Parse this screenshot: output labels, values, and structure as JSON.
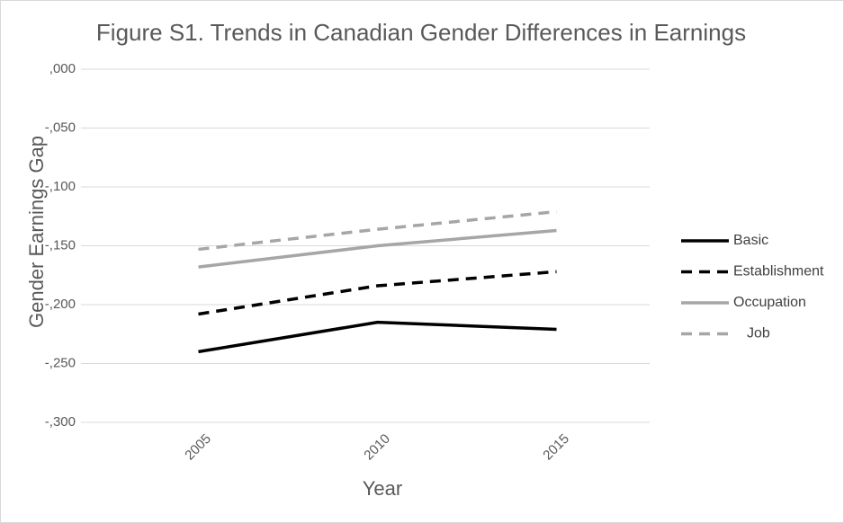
{
  "chart_data": {
    "type": "line",
    "title": "Figure S1. Trends in Canadian Gender Differences in Earnings",
    "x_label": "Year",
    "y_label": "Gender Earnings Gap",
    "categories": [
      "2005",
      "2010",
      "2015"
    ],
    "series": [
      {
        "name": "Basic",
        "color": "#000000",
        "dashed": false,
        "values": [
          -0.24,
          -0.215,
          -0.221
        ]
      },
      {
        "name": "Establishment",
        "color": "#000000",
        "dashed": true,
        "values": [
          -0.208,
          -0.184,
          -0.172
        ]
      },
      {
        "name": "Occupation",
        "color": "#a6a6a6",
        "dashed": false,
        "values": [
          -0.168,
          -0.15,
          -0.137
        ]
      },
      {
        "name": "Job",
        "color": "#a6a6a6",
        "dashed": true,
        "values": [
          -0.153,
          -0.136,
          -0.121
        ]
      }
    ],
    "ylim": [
      -0.3,
      0
    ],
    "yticks": [
      {
        "value": 0,
        "label": ",000"
      },
      {
        "value": -0.05,
        "label": "-,050"
      },
      {
        "value": -0.1,
        "label": "-,100"
      },
      {
        "value": -0.15,
        "label": "-,150"
      },
      {
        "value": -0.2,
        "label": "-,200"
      },
      {
        "value": -0.25,
        "label": "-,250"
      },
      {
        "value": -0.3,
        "label": "-,300"
      }
    ],
    "grid": true,
    "legend": "right"
  }
}
